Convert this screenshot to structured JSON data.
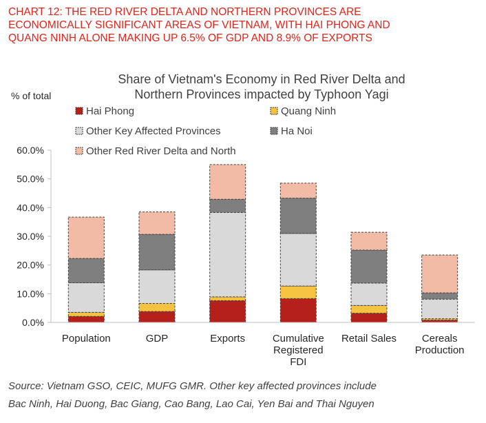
{
  "headline": {
    "lines": [
      "CHART 12: THE RED RIVER DELTA AND NORTHERN PROVINCES ARE",
      "ECONOMICALLY SIGNIFICANT AREAS OF VIETNAM, WITH HAI PHONG AND",
      "QUANG NINH ALONE MAKING UP 6.5% OF GDP AND 8.9% OF EXPORTS"
    ]
  },
  "source": {
    "lines": [
      "Source: Vietnam GSO, CEIC, MUFG GMR.  Other key affected provinces include",
      "Bac Ninh, Hai Duong, Bac Giang, Cao Bang, Lao Cai, Yen Bai and Thai Nguyen"
    ]
  },
  "chart_data": {
    "type": "bar",
    "stacked": true,
    "title_lines": [
      "Share of Vietnam's Economy in Red River Delta and",
      "Northern Provinces impacted by Typhoon Yagi"
    ],
    "ylabel": "% of total",
    "ylim": [
      0,
      60
    ],
    "yticks": [
      0,
      10,
      20,
      30,
      40,
      50,
      60
    ],
    "ytick_labels": [
      "0.0%",
      "10.0%",
      "20.0%",
      "30.0%",
      "40.0%",
      "50.0%",
      "60.0%"
    ],
    "grid": false,
    "legend_position": "top-left",
    "categories": [
      [
        "Population"
      ],
      [
        "GDP"
      ],
      [
        "Exports"
      ],
      [
        "Cumulative",
        "Registered",
        "FDI"
      ],
      [
        "Retail Sales"
      ],
      [
        "Cereals",
        "Production"
      ]
    ],
    "series": [
      {
        "name": "Hai Phong",
        "color": "#b5211a",
        "values": [
          2.1,
          3.8,
          7.6,
          8.3,
          3.2,
          0.8
        ]
      },
      {
        "name": "Quang Ninh",
        "color": "#f5c242",
        "values": [
          1.4,
          2.8,
          1.3,
          4.4,
          2.7,
          0.5
        ]
      },
      {
        "name": "Other Key Affected Provinces",
        "color": "#d9d9d9",
        "values": [
          10.3,
          11.7,
          29.4,
          18.3,
          7.8,
          6.8
        ]
      },
      {
        "name": "Ha Noi",
        "color": "#7f7f7f",
        "values": [
          8.5,
          12.4,
          4.6,
          12.3,
          11.5,
          2.2
        ]
      },
      {
        "name": "Other Red River Delta and North",
        "color": "#f2bba6",
        "values": [
          14.4,
          7.8,
          12.1,
          5.2,
          6.2,
          13.2
        ]
      }
    ]
  }
}
